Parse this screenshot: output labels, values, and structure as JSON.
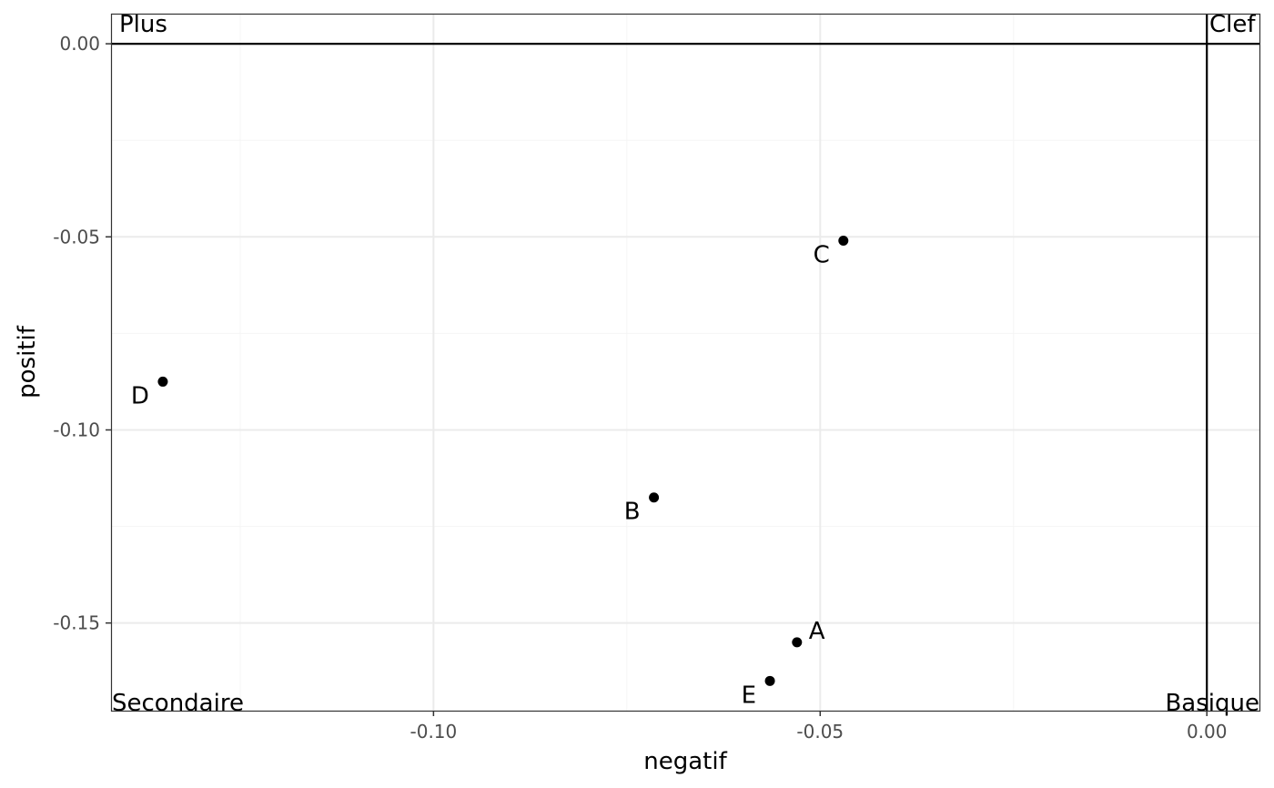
{
  "chart_data": {
    "type": "scatter",
    "title": "",
    "xlabel": "negatif",
    "ylabel": "positif",
    "xlim": [
      -0.1417,
      0.0068
    ],
    "ylim": [
      -0.1727,
      0.0078
    ],
    "x_ticks": [
      {
        "value": -0.1,
        "label": "-0.10"
      },
      {
        "value": -0.05,
        "label": "-0.05"
      },
      {
        "value": 0.0,
        "label": "0.00"
      }
    ],
    "y_ticks": [
      {
        "value": 0.0,
        "label": "0.00"
      },
      {
        "value": -0.05,
        "label": "-0.05"
      },
      {
        "value": -0.1,
        "label": "-0.10"
      },
      {
        "value": -0.15,
        "label": "-0.15"
      }
    ],
    "x_minor_ticks": [
      -0.125,
      -0.075,
      -0.025
    ],
    "y_minor_ticks": [
      -0.025,
      -0.075,
      -0.125
    ],
    "grid": true,
    "reference_lines": {
      "x": 0.0,
      "y": 0.0
    },
    "points": [
      {
        "label": "A",
        "x": -0.053,
        "y": -0.155,
        "label_side": "right"
      },
      {
        "label": "B",
        "x": -0.0715,
        "y": -0.1175,
        "label_side": "left"
      },
      {
        "label": "C",
        "x": -0.047,
        "y": -0.051,
        "label_side": "left"
      },
      {
        "label": "D",
        "x": -0.135,
        "y": -0.0875,
        "label_side": "left"
      },
      {
        "label": "E",
        "x": -0.0565,
        "y": -0.165,
        "label_side": "left"
      }
    ],
    "corner_labels": {
      "top_left": "Plus",
      "top_right": "Clef",
      "bottom_left": "Secondaire",
      "bottom_right": "Basique"
    },
    "colors": {
      "points": "#000000",
      "grid_major": "#ebebeb",
      "grid_minor": "#f5f5f5",
      "frame": "#333333",
      "tick_text": "#4d4d4d"
    }
  }
}
